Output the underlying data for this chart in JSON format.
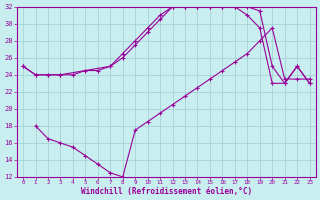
{
  "xlabel": "Windchill (Refroidissement éolien,°C)",
  "bg_color": "#c8eef0",
  "grid_color": "#a0ccd0",
  "line_color": "#990099",
  "xlim": [
    -0.5,
    23.5
  ],
  "ylim": [
    12,
    32
  ],
  "xticks": [
    0,
    1,
    2,
    3,
    4,
    5,
    6,
    7,
    8,
    9,
    10,
    11,
    12,
    13,
    14,
    15,
    16,
    17,
    18,
    19,
    20,
    21,
    22,
    23
  ],
  "yticks": [
    12,
    14,
    16,
    18,
    20,
    22,
    24,
    26,
    28,
    30,
    32
  ],
  "line1_x": [
    0,
    1,
    2,
    3,
    4,
    5,
    6,
    7,
    8,
    9,
    10,
    11,
    12,
    13,
    14,
    15,
    16,
    17,
    18,
    19,
    20,
    21,
    22,
    23
  ],
  "line1_y": [
    25.0,
    24.0,
    24.0,
    24.0,
    24.0,
    24.5,
    24.5,
    25.0,
    26.0,
    27.5,
    29.0,
    30.5,
    32.0,
    32.0,
    32.0,
    32.0,
    32.0,
    32.0,
    31.0,
    29.5,
    23.0,
    23.0,
    25.0,
    23.0
  ],
  "line2_x": [
    0,
    1,
    2,
    3,
    7,
    8,
    9,
    10,
    11,
    12,
    13,
    14,
    15,
    16,
    17,
    18,
    19,
    20,
    21,
    22,
    23
  ],
  "line2_y": [
    25.0,
    24.0,
    24.0,
    24.0,
    25.0,
    26.5,
    28.0,
    29.5,
    31.0,
    32.0,
    32.0,
    32.0,
    32.0,
    32.0,
    32.0,
    32.0,
    31.5,
    25.0,
    23.0,
    25.0,
    23.0
  ],
  "line3_x": [
    1,
    2,
    3,
    4,
    5,
    6,
    7,
    8,
    9,
    10,
    11,
    12,
    13,
    14,
    15,
    16,
    17,
    18,
    19,
    20,
    21,
    22,
    23
  ],
  "line3_y": [
    18.0,
    16.5,
    16.0,
    15.5,
    14.5,
    13.5,
    12.5,
    12.0,
    17.5,
    18.5,
    19.5,
    20.5,
    21.5,
    22.5,
    23.5,
    24.5,
    25.5,
    26.5,
    28.0,
    29.5,
    23.5,
    23.5,
    23.5
  ]
}
